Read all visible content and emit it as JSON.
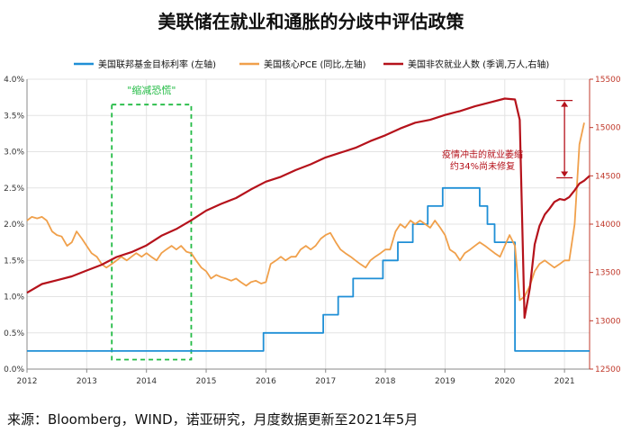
{
  "title": "美联储在就业和通胀的分歧中评估政策",
  "source": "来源：Bloomberg，WIND，诺亚研究，月度数据更新至2021年5月",
  "chart_data": {
    "type": "line",
    "x_range": [
      2012.0,
      2021.42
    ],
    "x_ticks": [
      2012,
      2013,
      2014,
      2015,
      2016,
      2017,
      2018,
      2019,
      2020,
      2021
    ],
    "x_tick_labels": [
      "2012",
      "2013",
      "2014",
      "2015",
      "2016",
      "2017",
      "2018",
      "2019",
      "2020",
      "2021"
    ],
    "y_left": {
      "range": [
        0,
        4.0
      ],
      "ticks": [
        0,
        0.5,
        1.0,
        1.5,
        2.0,
        2.5,
        3.0,
        3.5,
        4.0
      ],
      "tick_labels": [
        "0.0%",
        "0.5%",
        "1.0%",
        "1.5%",
        "2.0%",
        "2.5%",
        "3.0%",
        "3.5%",
        "4.0%"
      ]
    },
    "y_right": {
      "range": [
        12500,
        15500
      ],
      "ticks": [
        12500,
        13000,
        13500,
        14000,
        14500,
        15000,
        15500
      ],
      "tick_labels": [
        "12500",
        "13000",
        "13500",
        "14000",
        "14500",
        "15000",
        "15500"
      ]
    },
    "grid": true,
    "legend_position": "top",
    "series": [
      {
        "name": "美国联邦基金目标利率 (左轴)",
        "color": "#1f8fd6",
        "axis": "left",
        "step": true,
        "points": [
          [
            2012.0,
            0.25
          ],
          [
            2015.96,
            0.25
          ],
          [
            2015.96,
            0.5
          ],
          [
            2016.96,
            0.5
          ],
          [
            2016.96,
            0.75
          ],
          [
            2017.21,
            0.75
          ],
          [
            2017.21,
            1.0
          ],
          [
            2017.46,
            1.0
          ],
          [
            2017.46,
            1.25
          ],
          [
            2017.96,
            1.25
          ],
          [
            2017.96,
            1.5
          ],
          [
            2018.21,
            1.5
          ],
          [
            2018.21,
            1.75
          ],
          [
            2018.46,
            1.75
          ],
          [
            2018.46,
            2.0
          ],
          [
            2018.71,
            2.0
          ],
          [
            2018.71,
            2.25
          ],
          [
            2018.96,
            2.25
          ],
          [
            2018.96,
            2.5
          ],
          [
            2019.58,
            2.5
          ],
          [
            2019.58,
            2.25
          ],
          [
            2019.71,
            2.25
          ],
          [
            2019.71,
            2.0
          ],
          [
            2019.83,
            2.0
          ],
          [
            2019.83,
            1.75
          ],
          [
            2020.17,
            1.75
          ],
          [
            2020.17,
            0.25
          ],
          [
            2021.42,
            0.25
          ]
        ]
      },
      {
        "name": "美国核心PCE (同比,左轴)",
        "color": "#f0a04b",
        "axis": "left",
        "points": [
          [
            2012.0,
            2.05
          ],
          [
            2012.08,
            2.1
          ],
          [
            2012.17,
            2.08
          ],
          [
            2012.25,
            2.1
          ],
          [
            2012.33,
            2.05
          ],
          [
            2012.42,
            1.9
          ],
          [
            2012.5,
            1.85
          ],
          [
            2012.58,
            1.83
          ],
          [
            2012.67,
            1.7
          ],
          [
            2012.75,
            1.75
          ],
          [
            2012.83,
            1.9
          ],
          [
            2012.92,
            1.8
          ],
          [
            2013.0,
            1.7
          ],
          [
            2013.08,
            1.6
          ],
          [
            2013.17,
            1.55
          ],
          [
            2013.25,
            1.45
          ],
          [
            2013.33,
            1.4
          ],
          [
            2013.42,
            1.45
          ],
          [
            2013.5,
            1.5
          ],
          [
            2013.58,
            1.55
          ],
          [
            2013.67,
            1.5
          ],
          [
            2013.75,
            1.55
          ],
          [
            2013.83,
            1.6
          ],
          [
            2013.92,
            1.55
          ],
          [
            2014.0,
            1.6
          ],
          [
            2014.08,
            1.55
          ],
          [
            2014.17,
            1.5
          ],
          [
            2014.25,
            1.6
          ],
          [
            2014.33,
            1.65
          ],
          [
            2014.42,
            1.7
          ],
          [
            2014.5,
            1.65
          ],
          [
            2014.58,
            1.7
          ],
          [
            2014.67,
            1.62
          ],
          [
            2014.75,
            1.6
          ],
          [
            2014.83,
            1.5
          ],
          [
            2014.92,
            1.4
          ],
          [
            2015.0,
            1.35
          ],
          [
            2015.08,
            1.25
          ],
          [
            2015.17,
            1.3
          ],
          [
            2015.25,
            1.27
          ],
          [
            2015.33,
            1.25
          ],
          [
            2015.42,
            1.22
          ],
          [
            2015.5,
            1.25
          ],
          [
            2015.58,
            1.2
          ],
          [
            2015.67,
            1.15
          ],
          [
            2015.75,
            1.2
          ],
          [
            2015.83,
            1.22
          ],
          [
            2015.92,
            1.18
          ],
          [
            2016.0,
            1.2
          ],
          [
            2016.08,
            1.45
          ],
          [
            2016.17,
            1.5
          ],
          [
            2016.25,
            1.55
          ],
          [
            2016.33,
            1.5
          ],
          [
            2016.42,
            1.55
          ],
          [
            2016.5,
            1.55
          ],
          [
            2016.58,
            1.65
          ],
          [
            2016.67,
            1.7
          ],
          [
            2016.75,
            1.65
          ],
          [
            2016.83,
            1.7
          ],
          [
            2016.92,
            1.8
          ],
          [
            2017.0,
            1.85
          ],
          [
            2017.08,
            1.88
          ],
          [
            2017.17,
            1.75
          ],
          [
            2017.25,
            1.65
          ],
          [
            2017.33,
            1.6
          ],
          [
            2017.42,
            1.55
          ],
          [
            2017.5,
            1.5
          ],
          [
            2017.58,
            1.45
          ],
          [
            2017.67,
            1.4
          ],
          [
            2017.75,
            1.5
          ],
          [
            2017.83,
            1.55
          ],
          [
            2017.92,
            1.6
          ],
          [
            2018.0,
            1.65
          ],
          [
            2018.08,
            1.65
          ],
          [
            2018.17,
            1.9
          ],
          [
            2018.25,
            2.0
          ],
          [
            2018.33,
            1.95
          ],
          [
            2018.42,
            2.05
          ],
          [
            2018.5,
            2.0
          ],
          [
            2018.58,
            2.05
          ],
          [
            2018.67,
            2.0
          ],
          [
            2018.75,
            1.95
          ],
          [
            2018.83,
            2.05
          ],
          [
            2018.92,
            1.95
          ],
          [
            2019.0,
            1.85
          ],
          [
            2019.08,
            1.65
          ],
          [
            2019.17,
            1.6
          ],
          [
            2019.25,
            1.5
          ],
          [
            2019.33,
            1.6
          ],
          [
            2019.42,
            1.65
          ],
          [
            2019.5,
            1.7
          ],
          [
            2019.58,
            1.75
          ],
          [
            2019.67,
            1.7
          ],
          [
            2019.75,
            1.65
          ],
          [
            2019.83,
            1.6
          ],
          [
            2019.92,
            1.55
          ],
          [
            2020.0,
            1.7
          ],
          [
            2020.08,
            1.85
          ],
          [
            2020.17,
            1.7
          ],
          [
            2020.25,
            0.95
          ],
          [
            2020.33,
            1.0
          ],
          [
            2020.42,
            1.15
          ],
          [
            2020.5,
            1.35
          ],
          [
            2020.58,
            1.45
          ],
          [
            2020.67,
            1.5
          ],
          [
            2020.75,
            1.45
          ],
          [
            2020.83,
            1.4
          ],
          [
            2020.92,
            1.45
          ],
          [
            2021.0,
            1.5
          ],
          [
            2021.08,
            1.5
          ],
          [
            2021.17,
            2.0
          ],
          [
            2021.25,
            3.1
          ],
          [
            2021.33,
            3.4
          ]
        ]
      },
      {
        "name": "美国非农就业人数 (季调,万人,右轴)",
        "color": "#b5121b",
        "axis": "right",
        "points": [
          [
            2012.0,
            13290
          ],
          [
            2012.25,
            13380
          ],
          [
            2012.5,
            13420
          ],
          [
            2012.75,
            13460
          ],
          [
            2013.0,
            13520
          ],
          [
            2013.25,
            13580
          ],
          [
            2013.5,
            13660
          ],
          [
            2013.75,
            13710
          ],
          [
            2014.0,
            13780
          ],
          [
            2014.25,
            13880
          ],
          [
            2014.5,
            13950
          ],
          [
            2014.75,
            14040
          ],
          [
            2015.0,
            14140
          ],
          [
            2015.25,
            14210
          ],
          [
            2015.5,
            14270
          ],
          [
            2015.75,
            14360
          ],
          [
            2016.0,
            14440
          ],
          [
            2016.25,
            14490
          ],
          [
            2016.5,
            14560
          ],
          [
            2016.75,
            14620
          ],
          [
            2017.0,
            14690
          ],
          [
            2017.25,
            14740
          ],
          [
            2017.5,
            14790
          ],
          [
            2017.75,
            14860
          ],
          [
            2018.0,
            14920
          ],
          [
            2018.25,
            14990
          ],
          [
            2018.5,
            15050
          ],
          [
            2018.75,
            15080
          ],
          [
            2019.0,
            15130
          ],
          [
            2019.25,
            15170
          ],
          [
            2019.5,
            15220
          ],
          [
            2019.75,
            15260
          ],
          [
            2020.0,
            15300
          ],
          [
            2020.17,
            15290
          ],
          [
            2020.25,
            15080
          ],
          [
            2020.33,
            13030
          ],
          [
            2020.42,
            13340
          ],
          [
            2020.5,
            13790
          ],
          [
            2020.58,
            13980
          ],
          [
            2020.67,
            14100
          ],
          [
            2020.75,
            14160
          ],
          [
            2020.83,
            14230
          ],
          [
            2020.92,
            14260
          ],
          [
            2021.0,
            14250
          ],
          [
            2021.08,
            14280
          ],
          [
            2021.17,
            14350
          ],
          [
            2021.25,
            14420
          ],
          [
            2021.33,
            14450
          ],
          [
            2021.42,
            14500
          ]
        ]
      }
    ],
    "annotations": [
      {
        "text": "\"缩减恐慌\"",
        "color": "#22bb44",
        "box_x": [
          2013.42,
          2014.75
        ],
        "box_y": [
          0.13,
          3.65
        ]
      },
      {
        "text_lines": [
          "疫情冲击的就业萎缩",
          "约34%尚未修复"
        ],
        "color": "#b5121b",
        "bracket_x": 2021.0,
        "bracket_y": [
          15280,
          14480
        ]
      }
    ]
  }
}
